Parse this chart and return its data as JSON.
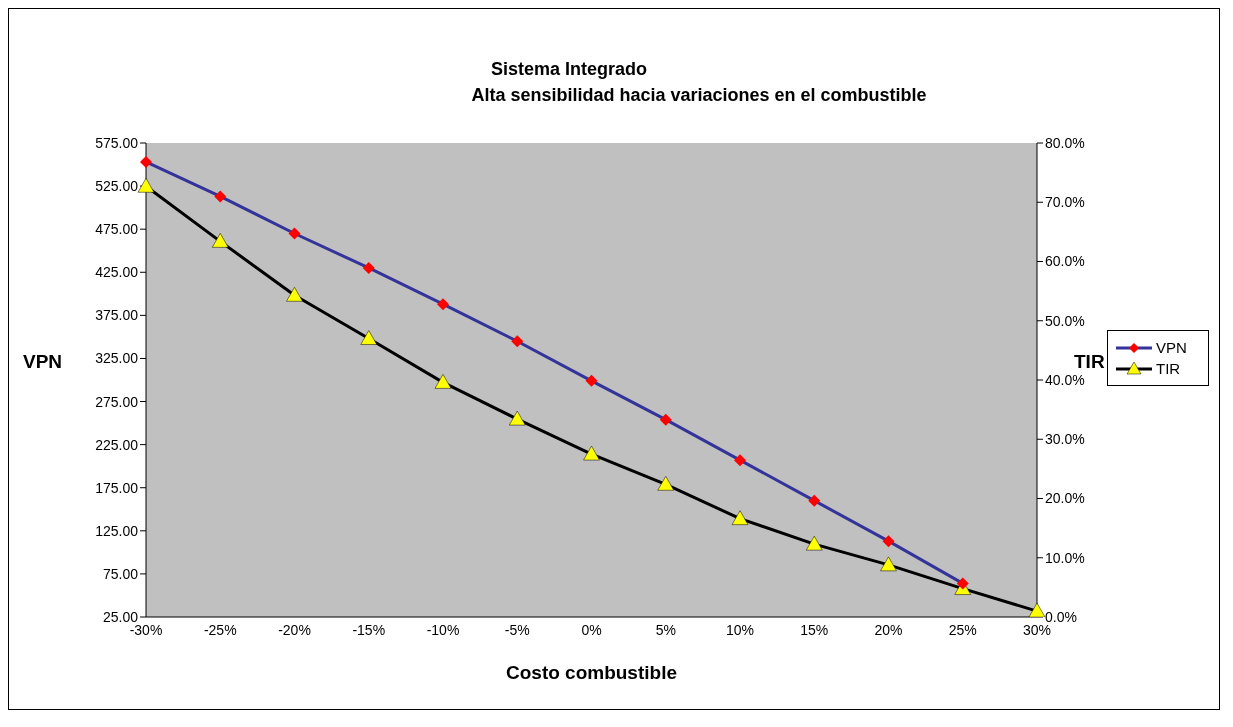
{
  "chart_data": {
    "type": "line",
    "title": "Sistema Integrado",
    "subtitle": "Alta sensibilidad hacia variaciones en el combustible",
    "xlabel": "Costo combustible",
    "ylabel": "VPN",
    "y2label": "TIR",
    "categories": [
      "-30%",
      "-25%",
      "-20%",
      "-15%",
      "-10%",
      "-5%",
      "0%",
      "5%",
      "10%",
      "15%",
      "20%",
      "25%",
      "30%"
    ],
    "series": [
      {
        "name": "VPN",
        "color": "#333399",
        "colors": [
          "#ff0000",
          "#ff0000",
          "#ff0000",
          "#ff0000",
          "#ff0000",
          "#ff0000",
          "#ff0000",
          "#ff0000",
          "#ff0000",
          "#ff0000",
          "#ff0000",
          "#ff0000",
          "#ff0000"
        ],
        "marker": "diamond",
        "values": [
          553,
          513,
          470,
          430,
          388,
          345,
          299,
          254,
          207,
          160,
          113,
          64,
          null
        ]
      },
      {
        "name": "TIR",
        "color": "#000000",
        "colors": [
          "#ffff00",
          "#ffff00",
          "#ffff00",
          "#ffff00",
          "#ffff00",
          "#ffff00",
          "#ffff00",
          "#ffff00",
          "#ffff00",
          "#ffff00",
          "#ffff00",
          "#ffff00",
          "#ffff00"
        ],
        "marker": "triangle",
        "axis": "y2",
        "values": [
          72.7,
          63.4,
          54.3,
          47.0,
          39.6,
          33.4,
          27.5,
          22.4,
          16.6,
          12.3,
          8.8,
          4.8,
          1.0
        ]
      }
    ],
    "ylim": [
      25,
      575
    ],
    "yticks": [
      {
        "value": 25,
        "label": "25.00"
      },
      {
        "value": 75,
        "label": "75.00"
      },
      {
        "value": 125,
        "label": "125.00"
      },
      {
        "value": 175,
        "label": "175.00"
      },
      {
        "value": 225,
        "label": "225.00"
      },
      {
        "value": 275,
        "label": "275.00"
      },
      {
        "value": 325,
        "label": "325.00"
      },
      {
        "value": 375,
        "label": "375.00"
      },
      {
        "value": 425,
        "label": "425.00"
      },
      {
        "value": 475,
        "label": "475.00"
      },
      {
        "value": 525,
        "label": "525.00"
      },
      {
        "value": 575,
        "label": "575.00"
      }
    ],
    "y2lim": [
      0,
      80
    ],
    "y2ticks": [
      {
        "value": 0,
        "label": "0.0%"
      },
      {
        "value": 10,
        "label": "10.0%"
      },
      {
        "value": 20,
        "label": "20.0%"
      },
      {
        "value": 30,
        "label": "30.0%"
      },
      {
        "value": 40,
        "label": "40.0%"
      },
      {
        "value": 50,
        "label": "50.0%"
      },
      {
        "value": 60,
        "label": "60.0%"
      },
      {
        "value": 70,
        "label": "70.0%"
      },
      {
        "value": 80,
        "label": "80.0%"
      }
    ],
    "legend": "right",
    "grid": false
  }
}
